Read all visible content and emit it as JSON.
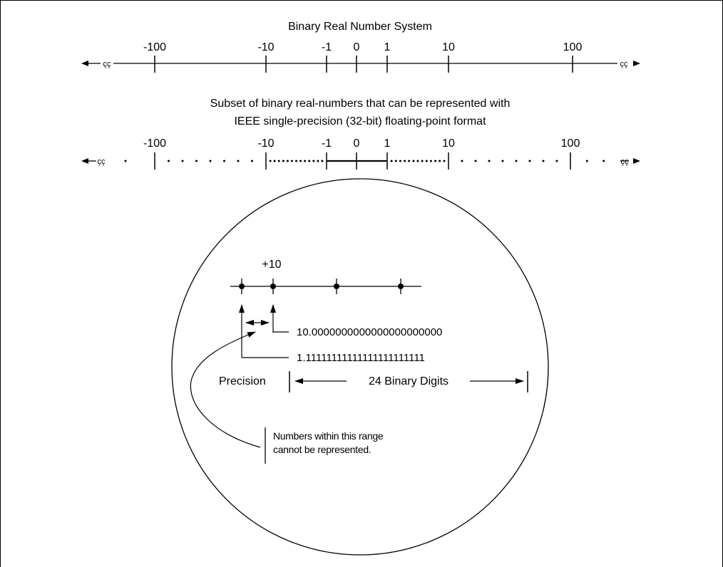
{
  "real_line": {
    "title": "Binary Real Number System",
    "ticks": [
      "-100",
      "-10",
      "-1",
      "0",
      "1",
      "10",
      "100"
    ],
    "break_mark": "çç"
  },
  "float_line": {
    "title_line1": "Subset of binary real-numbers that can be represented with",
    "title_line2": "IEEE single-precision (32-bit) floating-point format",
    "ticks": [
      "-100",
      "-10",
      "-1",
      "0",
      "1",
      "10",
      "100"
    ],
    "break_mark": "çç"
  },
  "magnifier": {
    "point_label": "+10",
    "upper_value": "10.0000000000000000000000",
    "lower_value": "1.11111111111111111111111",
    "precision_label": "Precision",
    "digits_label": "24 Binary Digits",
    "note_line1": "Numbers within this range",
    "note_line2": "cannot be represented."
  }
}
